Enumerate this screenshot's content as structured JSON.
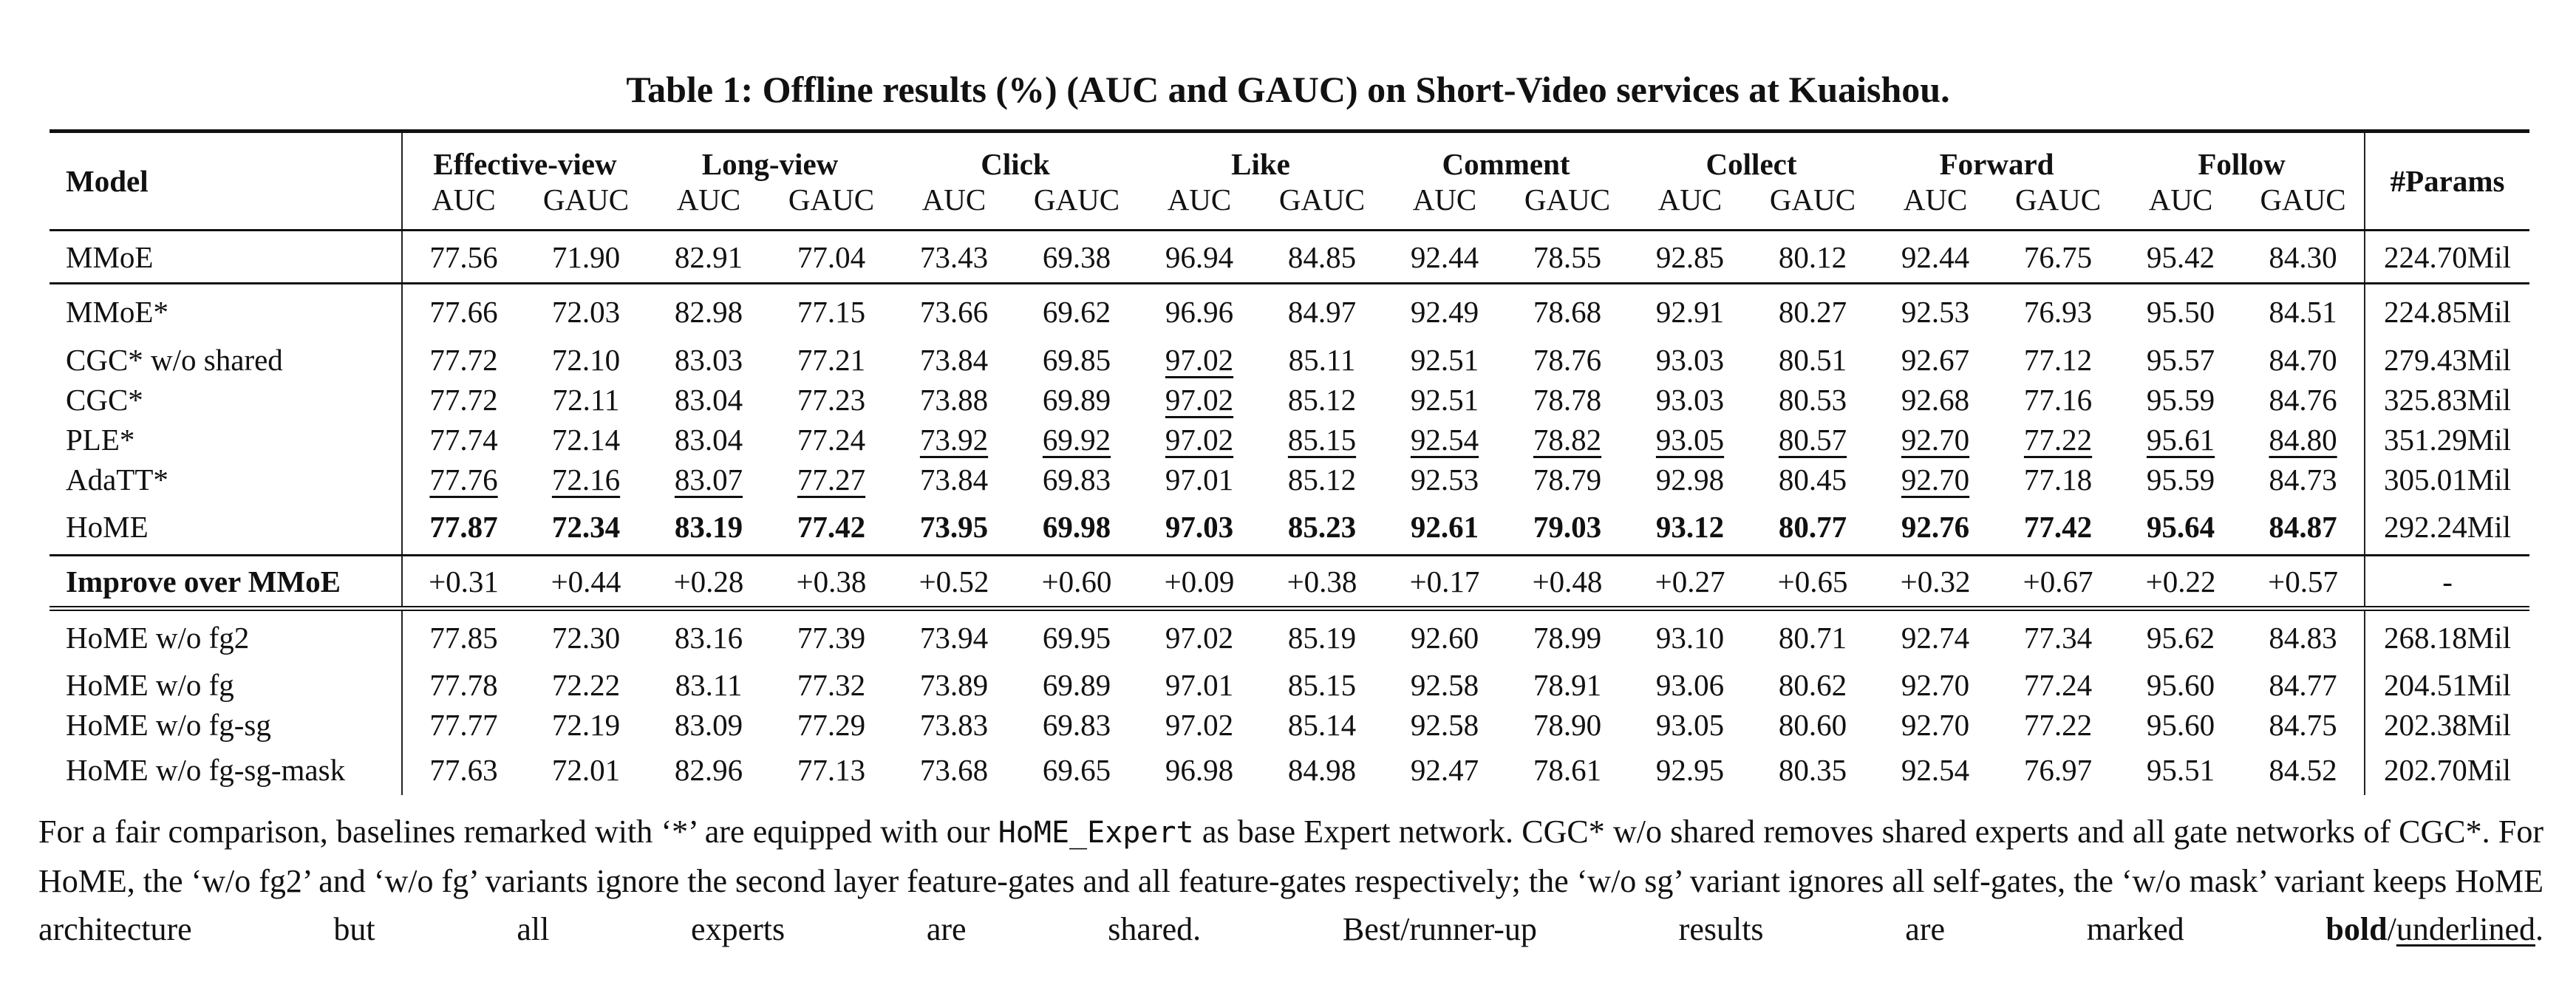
{
  "title": "Table 1: Offline results (%) (AUC and GAUC) on Short-Video services at Kuaishou.",
  "table": {
    "model_header": "Model",
    "params_header": "#Params",
    "groups": [
      "Effective-view",
      "Long-view",
      "Click",
      "Like",
      "Comment",
      "Collect",
      "Forward",
      "Follow"
    ],
    "metrics": [
      "AUC",
      "GAUC"
    ],
    "sections": [
      {
        "rows": [
          {
            "model": "MMoE",
            "params": "224.70Mil",
            "values": [
              "77.56",
              "71.90",
              "82.91",
              "77.04",
              "73.43",
              "69.38",
              "96.94",
              "84.85",
              "92.44",
              "78.55",
              "92.85",
              "80.12",
              "92.44",
              "76.75",
              "95.42",
              "84.30"
            ]
          }
        ]
      },
      {
        "rows": [
          {
            "model": "MMoE*",
            "params": "224.85Mil",
            "values": [
              "77.66",
              "72.03",
              "82.98",
              "77.15",
              "73.66",
              "69.62",
              "96.96",
              "84.97",
              "92.49",
              "78.68",
              "92.91",
              "80.27",
              "92.53",
              "76.93",
              "95.50",
              "84.51"
            ]
          },
          {
            "model": "CGC* w/o shared",
            "params": "279.43Mil",
            "values": [
              "77.72",
              "72.10",
              "83.03",
              "77.21",
              "73.84",
              "69.85",
              "97.02",
              "85.11",
              "92.51",
              "78.76",
              "93.03",
              "80.51",
              "92.67",
              "77.12",
              "95.57",
              "84.70"
            ],
            "underline": [
              6
            ]
          },
          {
            "model": "CGC*",
            "params": "325.83Mil",
            "values": [
              "77.72",
              "72.11",
              "83.04",
              "77.23",
              "73.88",
              "69.89",
              "97.02",
              "85.12",
              "92.51",
              "78.78",
              "93.03",
              "80.53",
              "92.68",
              "77.16",
              "95.59",
              "84.76"
            ],
            "underline": [
              6
            ]
          },
          {
            "model": "PLE*",
            "params": "351.29Mil",
            "values": [
              "77.74",
              "72.14",
              "83.04",
              "77.24",
              "73.92",
              "69.92",
              "97.02",
              "85.15",
              "92.54",
              "78.82",
              "93.05",
              "80.57",
              "92.70",
              "77.22",
              "95.61",
              "84.80"
            ],
            "underline": [
              4,
              5,
              6,
              7,
              8,
              9,
              10,
              11,
              12,
              13,
              14,
              15
            ]
          },
          {
            "model": "AdaTT*",
            "params": "305.01Mil",
            "values": [
              "77.76",
              "72.16",
              "83.07",
              "77.27",
              "73.84",
              "69.83",
              "97.01",
              "85.12",
              "92.53",
              "78.79",
              "92.98",
              "80.45",
              "92.70",
              "77.18",
              "95.59",
              "84.73"
            ],
            "underline": [
              0,
              1,
              2,
              3,
              12
            ]
          },
          {
            "model": "HoME",
            "params": "292.24Mil",
            "values": [
              "77.87",
              "72.34",
              "83.19",
              "77.42",
              "73.95",
              "69.98",
              "97.03",
              "85.23",
              "92.61",
              "79.03",
              "93.12",
              "80.77",
              "92.76",
              "77.42",
              "95.64",
              "84.87"
            ],
            "bold": true
          }
        ]
      },
      {
        "rows": [
          {
            "model": "Improve over MMoE",
            "params": "-",
            "values": [
              "+0.31",
              "+0.44",
              "+0.28",
              "+0.38",
              "+0.52",
              "+0.60",
              "+0.09",
              "+0.38",
              "+0.17",
              "+0.48",
              "+0.27",
              "+0.65",
              "+0.32",
              "+0.67",
              "+0.22",
              "+0.57"
            ],
            "bold_model": true
          }
        ]
      },
      {
        "double": true,
        "rows": [
          {
            "model": "HoME w/o fg2",
            "params": "268.18Mil",
            "values": [
              "77.85",
              "72.30",
              "83.16",
              "77.39",
              "73.94",
              "69.95",
              "97.02",
              "85.19",
              "92.60",
              "78.99",
              "93.10",
              "80.71",
              "92.74",
              "77.34",
              "95.62",
              "84.83"
            ]
          },
          {
            "model": "HoME w/o fg",
            "params": "204.51Mil",
            "values": [
              "77.78",
              "72.22",
              "83.11",
              "77.32",
              "73.89",
              "69.89",
              "97.01",
              "85.15",
              "92.58",
              "78.91",
              "93.06",
              "80.62",
              "92.70",
              "77.24",
              "95.60",
              "84.77"
            ]
          },
          {
            "model": "HoME w/o fg-sg",
            "params": "202.38Mil",
            "values": [
              "77.77",
              "72.19",
              "83.09",
              "77.29",
              "73.83",
              "69.83",
              "97.02",
              "85.14",
              "92.58",
              "78.90",
              "93.05",
              "80.60",
              "92.70",
              "77.22",
              "95.60",
              "84.75"
            ]
          },
          {
            "model": "HoME w/o fg-sg-mask",
            "params": "202.70Mil",
            "values": [
              "77.63",
              "72.01",
              "82.96",
              "77.13",
              "73.68",
              "69.65",
              "96.98",
              "84.98",
              "92.47",
              "78.61",
              "92.95",
              "80.35",
              "92.54",
              "76.97",
              "95.51",
              "84.52"
            ]
          }
        ]
      }
    ]
  },
  "caption": {
    "p1": "For a fair comparison, baselines remarked with ‘*’ are equipped with our ",
    "code": "HoME_Expert",
    "p2": " as base Expert network. CGC* w/o shared removes shared experts and all gate networks of CGC*. For HoME, the ‘w/o fg2’ and ‘w/o fg’ variants ignore the second layer feature-gates and all feature-gates respectively; the ‘w/o sg’ variant ignores all self-gates, the ‘w/o mask’ variant keeps HoME architecture but all experts are shared. Best/runner-up results are marked ",
    "bold_word": "bold",
    "slash": "/",
    "underline_word": "underlined",
    "end": "."
  }
}
